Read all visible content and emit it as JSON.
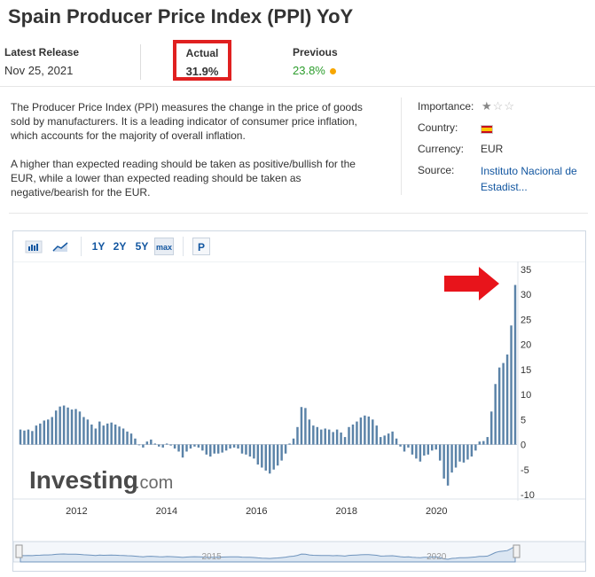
{
  "page": {
    "title": "Spain Producer Price Index (PPI) YoY"
  },
  "release": {
    "latest_label": "Latest Release",
    "latest_value": "Nov 25, 2021",
    "actual_label": "Actual",
    "actual_value": "31.9%",
    "previous_label": "Previous",
    "previous_value": "23.8%"
  },
  "description": {
    "p1": "The Producer Price Index (PPI) measures the change in the price of goods sold by manufacturers. It is a leading indicator of consumer price inflation, which accounts for the majority of overall inflation.",
    "p2": "A higher than expected reading should be taken as positive/bullish for the EUR, while a lower than expected reading should be taken as negative/bearish for the EUR."
  },
  "meta": {
    "importance_label": "Importance:",
    "importance_stars": 1,
    "country_label": "Country:",
    "country_flag": "spain-flag",
    "currency_label": "Currency:",
    "currency_value": "EUR",
    "source_label": "Source:",
    "source_line1": "Instituto Nacional de",
    "source_line2": "Estadist..."
  },
  "toolbar": {
    "range_1y": "1Y",
    "range_2y": "2Y",
    "range_5y": "5Y",
    "range_max": "max",
    "p_label": "P"
  },
  "watermark": {
    "brand": "Investing",
    "suffix": ".com"
  },
  "colors": {
    "bar": "#5b83a8",
    "arrow": "#e8141b",
    "previous": "#2c9d2c",
    "navigator": "#dbe6f2"
  },
  "chart_data": {
    "type": "bar",
    "y_ticks": [
      35,
      30,
      25,
      20,
      15,
      10,
      5,
      0,
      -5,
      -10
    ],
    "ylim": [
      -10,
      35
    ],
    "x_tick_labels": [
      "2012",
      "2014",
      "2016",
      "2018",
      "2020"
    ],
    "x_start": "2010-10",
    "x_end": "2021-10",
    "navigator_labels": [
      "2015",
      "2020"
    ],
    "series": [
      {
        "values": [
          3.0,
          2.8,
          3.0,
          2.7,
          3.8,
          4.2,
          4.8,
          5.0,
          5.5,
          6.8,
          7.6,
          7.8,
          7.4,
          7.0,
          7.1,
          6.6,
          5.5,
          5.0,
          4.0,
          3.2,
          4.6,
          3.8,
          4.2,
          4.4,
          4.0,
          3.6,
          3.2,
          2.6,
          2.2,
          1.2,
          0.0,
          -0.6,
          0.6,
          1.0,
          0.2,
          -0.4,
          -0.6,
          0.2,
          -0.2,
          -0.8,
          -1.4,
          -2.6,
          -1.4,
          -0.8,
          -0.4,
          -0.6,
          -1.2,
          -2.0,
          -2.4,
          -1.8,
          -1.8,
          -1.6,
          -1.2,
          -0.8,
          -0.6,
          -0.8,
          -1.8,
          -2.0,
          -2.4,
          -2.8,
          -4.0,
          -4.6,
          -5.2,
          -5.8,
          -5.0,
          -4.2,
          -3.2,
          -1.8,
          0.2,
          1.2,
          3.5,
          7.5,
          7.3,
          5.0,
          3.8,
          3.5,
          3.0,
          3.2,
          3.0,
          2.5,
          3.0,
          2.4,
          1.5,
          3.5,
          4.0,
          4.6,
          5.4,
          5.8,
          5.6,
          5.0,
          3.8,
          1.5,
          1.8,
          2.2,
          2.6,
          1.2,
          -0.4,
          -1.4,
          -0.6,
          -2.0,
          -2.8,
          -3.4,
          -2.2,
          -2.0,
          -1.2,
          -1.0,
          -3.2,
          -6.8,
          -8.2,
          -5.6,
          -4.6,
          -3.4,
          -3.6,
          -3.0,
          -2.4,
          -1.2,
          0.6,
          0.7,
          1.5,
          6.6,
          12.1,
          15.4,
          16.3,
          18.0,
          23.8,
          31.9
        ]
      }
    ]
  }
}
